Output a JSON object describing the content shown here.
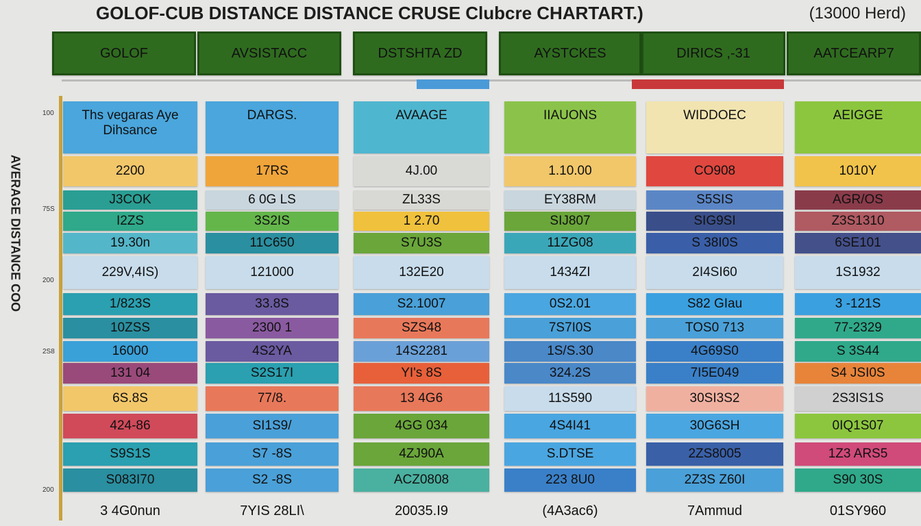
{
  "header": {
    "title": "GOLOF-CUB DISTANCE DISTANCE CRUSE Clubcre CHARTART.)",
    "note": "(13000 Herd)"
  },
  "side_label": "AVERAGE DISTANCE COO",
  "axis_labels": [
    "100",
    "75S",
    "200",
    "2S8",
    "200"
  ],
  "table": {
    "top_headers": [
      "GOLOF",
      "AVSISTACC",
      "DSTSHTA ZD",
      "AYSTCKES",
      "DIRICS ,-31",
      "AATCEARP7"
    ],
    "column_headers": [
      "Ths vegaras Aye Dihsance",
      "DARGS.",
      "AVAAGE",
      "IIAUONS",
      "WIDDOEC",
      "AEIGGE"
    ],
    "rows": [
      [
        "2200",
        "17RS",
        "4J.00",
        "1.10.00",
        "CO908",
        "1010Y"
      ],
      [
        "J3COK",
        "6 0G LS",
        "ZL33S",
        "EY38RM",
        "S5SIS",
        "AGR/OS"
      ],
      [
        "I2ZS",
        "3S2IS",
        "1 2.70",
        "SIJ807",
        "SIG9SI",
        "Z3S1310"
      ],
      [
        "19.30n",
        "11C650",
        "S7U3S",
        "11ZG08",
        "S 38I0S",
        "6SE101"
      ],
      [
        "229V,4IS)",
        "121000",
        "132E20",
        "1434ZI",
        "2I4SI60",
        "1S1932"
      ],
      [
        "1/823S",
        "33.8S",
        "S2.1007",
        "0S2.01",
        "S82 GIau",
        "3 -121S"
      ],
      [
        "10ZSS",
        "2300 1",
        "SZS48",
        "7S7I0S",
        "TOS0 713",
        "77-2329"
      ],
      [
        "16000",
        "4S2YA",
        "14S2281",
        "1S/S.30",
        "4G69S0",
        "S 3S44"
      ],
      [
        "131 04",
        "S2S17I",
        "YI's 8S",
        "324.2S",
        "7I5E049",
        "S4 JSI0S"
      ],
      [
        "6S.8S",
        "77/8.",
        "13 4G6",
        "11S590",
        "30SI3S2",
        "2S3IS1S"
      ],
      [
        "424-86",
        "SI1S9/",
        "4GG 034",
        "4S4I41",
        "30G6SH",
        "0IQ1S07"
      ],
      [
        "S9S1S",
        "S7 -8S",
        "4ZJ90A",
        "S.DTSE",
        "2ZS8005",
        "1Z3 ARS5"
      ],
      [
        "S083I70",
        "S2 -8S",
        "ACZ0808",
        "223 8U0",
        "2Z3S Z60I",
        "S90 30S"
      ]
    ],
    "footer": [
      "3 4G0nun",
      "7YIS 28LI\\",
      "20035.I9",
      "(4A3ac6)",
      "7Ammud",
      "01SY960"
    ]
  }
}
